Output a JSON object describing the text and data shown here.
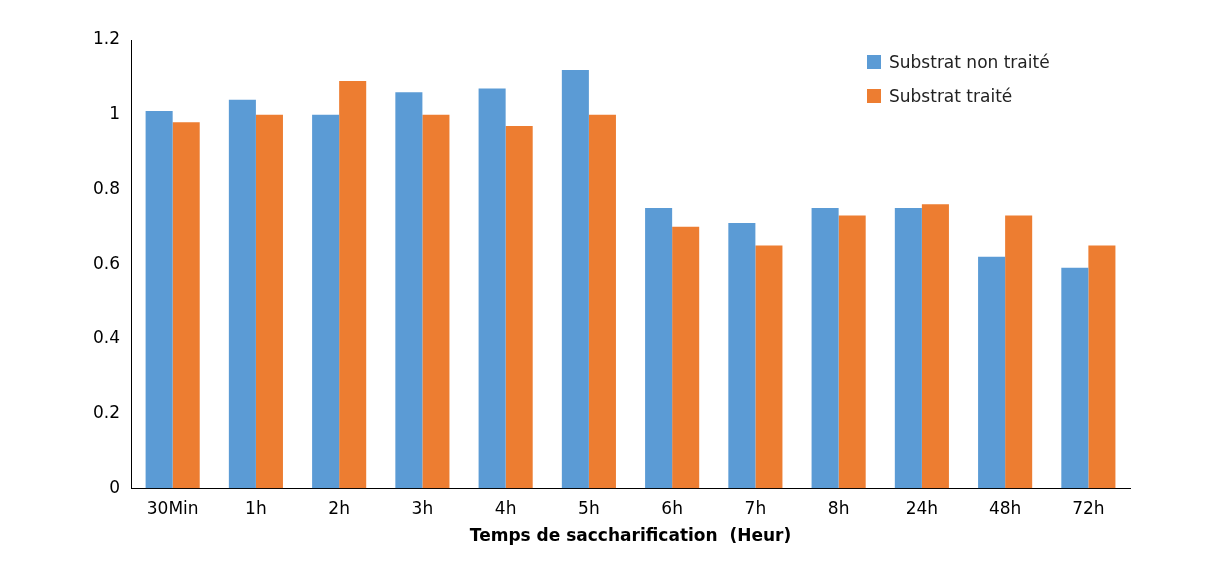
{
  "chart_data": {
    "type": "bar",
    "xlabel": "Temps de saccharification  (Heur)",
    "categories": [
      "30Min",
      "1h",
      "2h",
      "3h",
      "4h",
      "5h",
      "6h",
      "7h",
      "8h",
      "24h",
      "48h",
      "72h"
    ],
    "series": [
      {
        "name": "Substrat non traité",
        "color": "#5b9bd5",
        "values": [
          1.01,
          1.04,
          1.0,
          1.06,
          1.07,
          1.12,
          0.75,
          0.71,
          0.75,
          0.75,
          0.62,
          0.59
        ]
      },
      {
        "name": "Substrat traité",
        "color": "#ed7d31",
        "values": [
          0.98,
          1.0,
          1.09,
          1.0,
          0.97,
          1.0,
          0.7,
          0.65,
          0.73,
          0.76,
          0.73,
          0.65
        ]
      }
    ],
    "ylim": [
      0,
      1.2
    ],
    "yticks": [
      0,
      0.2,
      0.4,
      0.6,
      0.8,
      1,
      1.2
    ],
    "grid": false,
    "legend": "top right"
  }
}
